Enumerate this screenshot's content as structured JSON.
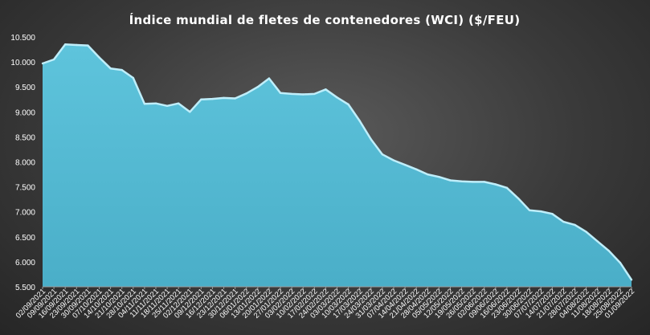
{
  "chart_data": {
    "type": "area",
    "title": "Índice mundial de fletes de contenedores (WCI) ($/FEU)",
    "xlabel": "",
    "ylabel": "",
    "ylim": [
      5500,
      10500
    ],
    "yticks": [
      5500,
      6000,
      6500,
      7000,
      7500,
      8000,
      8500,
      9000,
      9500,
      10000,
      10500
    ],
    "ytick_labels": [
      "5.500",
      "6.000",
      "6.500",
      "7.000",
      "7.500",
      "8.000",
      "8.500",
      "9.000",
      "9.500",
      "10.000",
      "10.500"
    ],
    "grid": false,
    "legend": "none",
    "colors": {
      "fill": "#4fb8d2",
      "edge": "#bfeefa",
      "background": "#3a3a3a",
      "text": "#ffffff"
    },
    "x": [
      "02/09/2021",
      "09/09/2021",
      "16/09/2021",
      "23/09/2021",
      "30/09/2021",
      "07/10/2021",
      "14/10/2021",
      "21/10/2021",
      "28/10/2021",
      "04/11/2021",
      "11/11/2021",
      "18/11/2021",
      "25/11/2021",
      "02/12/2021",
      "09/12/2021",
      "16/12/2021",
      "23/12/2021",
      "30/12/2021",
      "06/01/2022",
      "13/01/2022",
      "20/01/2022",
      "27/01/2022",
      "03/02/2022",
      "10/02/2022",
      "17/02/2022",
      "24/02/2022",
      "03/03/2022",
      "10/03/2022",
      "17/03/2022",
      "24/03/2022",
      "31/03/2022",
      "07/04/2022",
      "14/04/2022",
      "21/04/2022",
      "28/04/2022",
      "05/05/2022",
      "12/05/2022",
      "19/05/2022",
      "26/05/2022",
      "02/06/2022",
      "09/06/2022",
      "16/06/2022",
      "23/06/2022",
      "30/06/2022",
      "07/07/2022",
      "14/07/2022",
      "21/07/2022",
      "28/07/2022",
      "04/08/2022",
      "11/08/2022",
      "18/08/2022",
      "25/08/2022",
      "01/09/2022"
    ],
    "values": [
      9970,
      10050,
      10350,
      10340,
      10330,
      10090,
      9870,
      9840,
      9680,
      9160,
      9170,
      9120,
      9170,
      9000,
      9250,
      9260,
      9280,
      9270,
      9370,
      9500,
      9670,
      9380,
      9360,
      9350,
      9360,
      9450,
      9290,
      9150,
      8820,
      8450,
      8150,
      8030,
      7940,
      7850,
      7750,
      7700,
      7630,
      7610,
      7600,
      7600,
      7550,
      7480,
      7270,
      7030,
      7010,
      6960,
      6800,
      6740,
      6600,
      6410,
      6220,
      5980,
      5640
    ]
  }
}
